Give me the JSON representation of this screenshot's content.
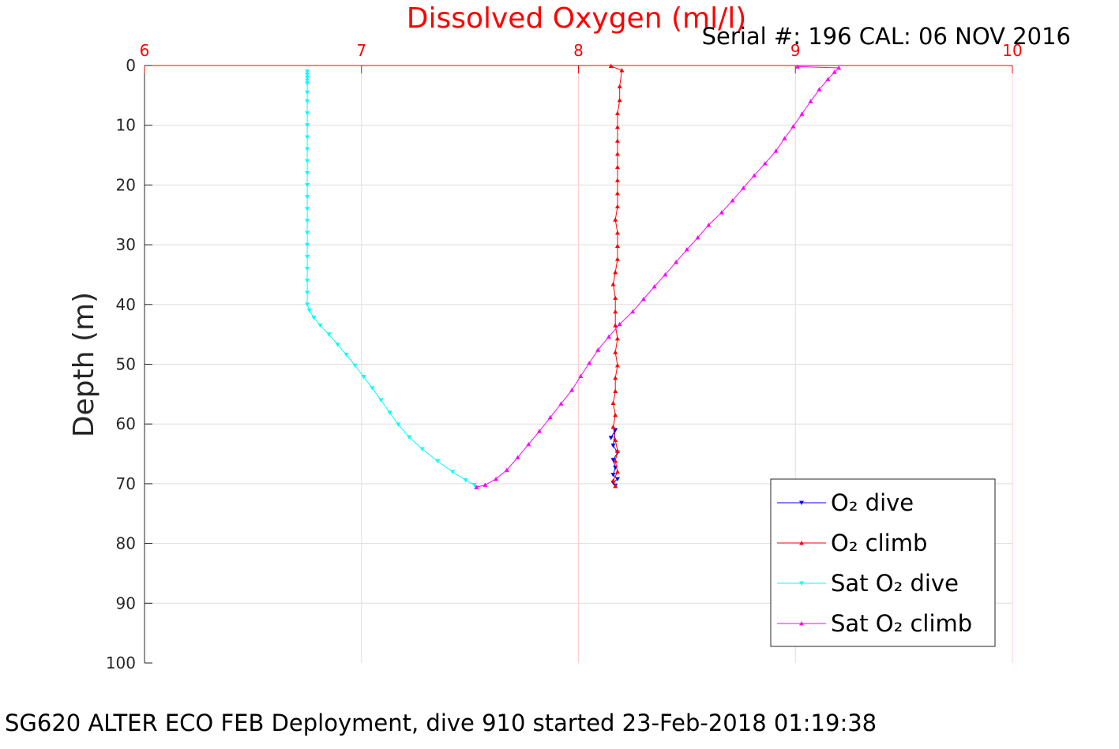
{
  "chart_data": {
    "type": "line",
    "title": "Dissolved Oxygen (ml/l)",
    "subtitle": "Serial #: 196  CAL: 06 NOV 2016",
    "caption": "SG620 ALTER ECO FEB Deployment, dive 910 started 23-Feb-2018 01:19:38",
    "xlabel": "",
    "ylabel": "Depth (m)",
    "x_axis_position": "top",
    "y_axis_reversed": true,
    "xlim": [
      6,
      10
    ],
    "ylim": [
      0,
      100
    ],
    "x_ticks": [
      6,
      7,
      8,
      9,
      10
    ],
    "y_ticks": [
      0,
      10,
      20,
      30,
      40,
      50,
      60,
      70,
      80,
      90,
      100
    ],
    "grid": true,
    "legend_position": "bottom-right",
    "colors": {
      "title": "#ff0000",
      "x_axis": "#ff0000",
      "y_axis": "#262626",
      "grid": "#dedede",
      "grid_x": "#ffd0d0"
    },
    "series": [
      {
        "name": "O2 dive",
        "legend_label": "O₂ dive",
        "color": "#0000ff",
        "marker": "triangle-down",
        "points": [
          [
            8.15,
            62.3
          ],
          [
            8.17,
            61.0
          ],
          [
            8.16,
            63.6
          ],
          [
            8.18,
            64.8
          ],
          [
            8.16,
            66.0
          ],
          [
            8.17,
            67.3
          ],
          [
            8.16,
            68.5
          ],
          [
            8.18,
            69.2
          ],
          [
            8.16,
            69.8
          ],
          [
            8.17,
            70.3
          ]
        ]
      },
      {
        "name": "O2 climb",
        "legend_label": "O₂ climb",
        "color": "#ff0000",
        "marker": "triangle-up",
        "points": [
          [
            8.17,
            70.4
          ],
          [
            8.16,
            69.5
          ],
          [
            8.18,
            68.0
          ],
          [
            8.17,
            66.2
          ],
          [
            8.18,
            64.5
          ],
          [
            8.17,
            62.7
          ],
          [
            8.16,
            60.5
          ],
          [
            8.17,
            58.5
          ],
          [
            8.16,
            56.5
          ],
          [
            8.17,
            54.5
          ],
          [
            8.17,
            52.3
          ],
          [
            8.18,
            50.2
          ],
          [
            8.17,
            48.0
          ],
          [
            8.18,
            45.7
          ],
          [
            8.17,
            43.5
          ],
          [
            8.17,
            41.2
          ],
          [
            8.17,
            38.9
          ],
          [
            8.16,
            36.6
          ],
          [
            8.17,
            34.6
          ],
          [
            8.18,
            32.4
          ],
          [
            8.18,
            30.2
          ],
          [
            8.18,
            28.0
          ],
          [
            8.17,
            25.8
          ],
          [
            8.18,
            23.6
          ],
          [
            8.18,
            21.4
          ],
          [
            8.18,
            19.2
          ],
          [
            8.18,
            17.0
          ],
          [
            8.18,
            14.8
          ],
          [
            8.18,
            12.6
          ],
          [
            8.18,
            10.3
          ],
          [
            8.18,
            8.0
          ],
          [
            8.19,
            5.8
          ],
          [
            8.19,
            3.5
          ],
          [
            8.2,
            0.8
          ],
          [
            8.15,
            0.1
          ]
        ]
      },
      {
        "name": "Sat O2 dive",
        "legend_label": "Sat O₂ dive",
        "color": "#00ffff",
        "marker": "triangle-down",
        "points": [
          [
            6.75,
            1.0
          ],
          [
            6.75,
            1.5
          ],
          [
            6.75,
            2.0
          ],
          [
            6.75,
            2.5
          ],
          [
            6.75,
            3.0
          ],
          [
            6.75,
            4.5
          ],
          [
            6.75,
            6.0
          ],
          [
            6.75,
            8.0
          ],
          [
            6.75,
            10.0
          ],
          [
            6.75,
            12.0
          ],
          [
            6.75,
            14.0
          ],
          [
            6.75,
            16.0
          ],
          [
            6.75,
            18.0
          ],
          [
            6.75,
            20.0
          ],
          [
            6.75,
            22.0
          ],
          [
            6.75,
            24.0
          ],
          [
            6.75,
            26.0
          ],
          [
            6.75,
            28.0
          ],
          [
            6.75,
            30.0
          ],
          [
            6.75,
            32.0
          ],
          [
            6.75,
            34.0
          ],
          [
            6.75,
            36.0
          ],
          [
            6.75,
            38.0
          ],
          [
            6.75,
            40.0
          ],
          [
            6.76,
            41.0
          ],
          [
            6.78,
            42.2
          ],
          [
            6.81,
            43.5
          ],
          [
            6.85,
            45.0
          ],
          [
            6.89,
            46.7
          ],
          [
            6.93,
            48.4
          ],
          [
            6.97,
            50.2
          ],
          [
            7.01,
            52.1
          ],
          [
            7.05,
            54.0
          ],
          [
            7.09,
            56.0
          ],
          [
            7.13,
            58.1
          ],
          [
            7.17,
            60.1
          ],
          [
            7.22,
            62.2
          ],
          [
            7.28,
            64.2
          ],
          [
            7.35,
            66.2
          ],
          [
            7.42,
            68.0
          ],
          [
            7.48,
            69.4
          ],
          [
            7.52,
            70.2
          ],
          [
            7.53,
            70.6
          ]
        ]
      },
      {
        "name": "Sat O2 climb",
        "legend_label": "Sat O₂ climb",
        "color": "#ff00ff",
        "marker": "triangle-up",
        "points": [
          [
            7.53,
            70.6
          ],
          [
            7.57,
            70.2
          ],
          [
            7.62,
            69.2
          ],
          [
            7.67,
            67.7
          ],
          [
            7.72,
            65.6
          ],
          [
            7.77,
            63.4
          ],
          [
            7.82,
            61.2
          ],
          [
            7.87,
            58.9
          ],
          [
            7.92,
            56.6
          ],
          [
            7.97,
            54.3
          ],
          [
            8.01,
            52.0
          ],
          [
            8.05,
            49.8
          ],
          [
            8.09,
            47.6
          ],
          [
            8.14,
            45.4
          ],
          [
            8.19,
            43.3
          ],
          [
            8.25,
            41.2
          ],
          [
            8.3,
            39.1
          ],
          [
            8.35,
            37.0
          ],
          [
            8.4,
            35.0
          ],
          [
            8.45,
            32.9
          ],
          [
            8.5,
            30.8
          ],
          [
            8.55,
            28.8
          ],
          [
            8.6,
            26.7
          ],
          [
            8.66,
            24.6
          ],
          [
            8.71,
            22.6
          ],
          [
            8.76,
            20.5
          ],
          [
            8.81,
            18.4
          ],
          [
            8.86,
            16.4
          ],
          [
            8.91,
            14.3
          ],
          [
            8.95,
            12.2
          ],
          [
            8.99,
            10.2
          ],
          [
            9.03,
            8.1
          ],
          [
            9.07,
            6.0
          ],
          [
            9.11,
            4.0
          ],
          [
            9.15,
            2.3
          ],
          [
            9.18,
            1.1
          ],
          [
            9.2,
            0.4
          ],
          [
            9.01,
            0.2
          ]
        ]
      }
    ]
  }
}
